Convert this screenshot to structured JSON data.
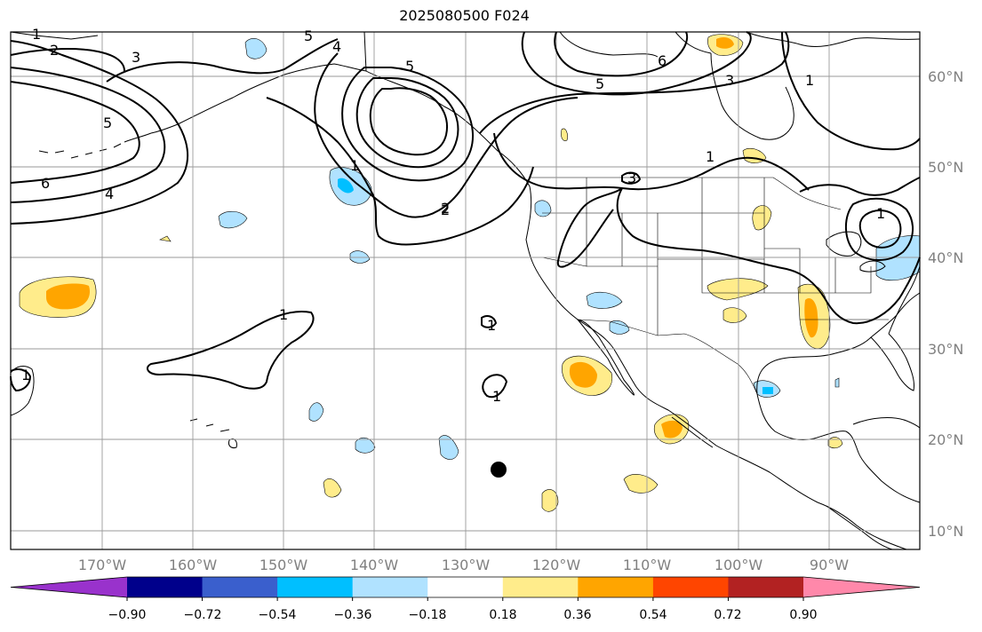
{
  "title": "2025080500 F024",
  "lat_labels": [
    "60°N",
    "50°N",
    "40°N",
    "30°N",
    "20°N",
    "10°N"
  ],
  "lon_labels": [
    "170°W",
    "160°W",
    "150°W",
    "140°W",
    "130°W",
    "120°W",
    "110°W",
    "100°W",
    "90°W"
  ],
  "colorbar": {
    "colors": [
      "#9932cc",
      "#00008b",
      "#3a5fcd",
      "#00bfff",
      "#b0e2ff",
      "#ffffff",
      "#ffec8b",
      "#ffa500",
      "#ff4500",
      "#b22222",
      "#ff88aa",
      "#ff88aa"
    ],
    "tick_labels": [
      "−0.90",
      "−0.72",
      "−0.54",
      "−0.36",
      "−0.18",
      "0.18",
      "0.36",
      "0.54",
      "0.72",
      "0.90"
    ]
  },
  "contour_labels": [
    "1",
    "2",
    "3",
    "5",
    "4",
    "2",
    "3",
    "5",
    "6",
    "4",
    "5",
    "1",
    "2",
    "5",
    "6",
    "3",
    "1",
    "1",
    "3",
    "1",
    "1",
    "1",
    "1",
    "1"
  ]
}
